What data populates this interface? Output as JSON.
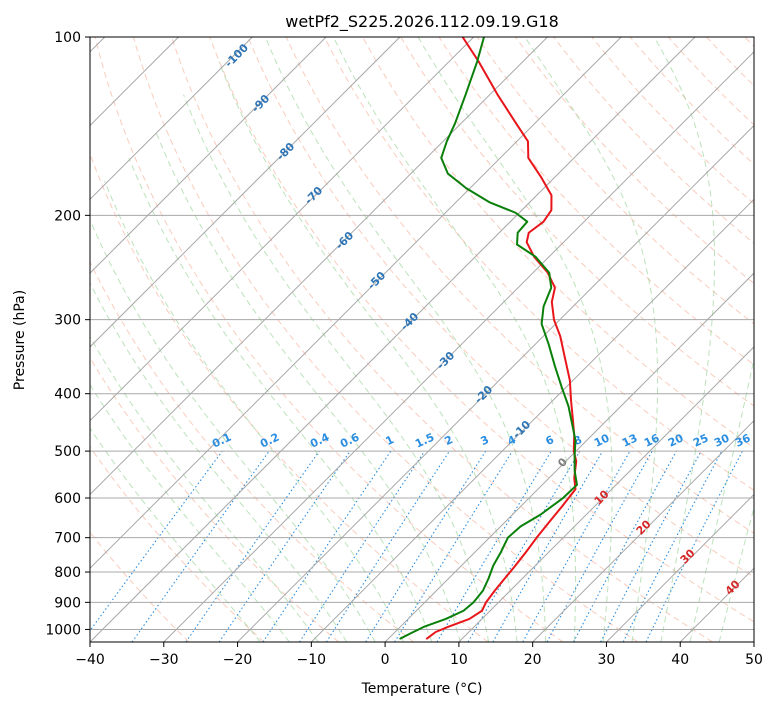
{
  "chart_data": {
    "type": "skew-t",
    "title": "wetPf2_S225.2026.112.09.19.G18",
    "xlabel": "Temperature (°C)",
    "ylabel": "Pressure (hPa)",
    "xlim": [
      -40,
      50
    ],
    "ylim": [
      1050,
      100
    ],
    "x_ticks": [
      -40,
      -30,
      -20,
      -10,
      0,
      10,
      20,
      30,
      40,
      50
    ],
    "y_ticks": [
      100,
      200,
      300,
      400,
      500,
      600,
      700,
      800,
      900,
      1000
    ],
    "grid": true,
    "colors": {
      "temperature": "#e8161a",
      "dewpoint": "#0a800a",
      "isotherm": "#a8a8a8",
      "isobar": "#a8a8a8",
      "dry_adiabat": "#f4a386",
      "moist_adiabat": "#8fcf8f",
      "mixing_ratio": "#2b8ee0",
      "isotherm_label": "#2e75b6",
      "isotherm_label_pos": "#d62728",
      "isotherm_label_zero": "#7f7f7f",
      "ccl_curve": "#d9b99b"
    },
    "series": [
      {
        "name": "Temperature",
        "points": [
          {
            "p": 1036,
            "t": 5.2
          },
          {
            "p": 1010,
            "t": 5.5
          },
          {
            "p": 990,
            "t": 6.5
          },
          {
            "p": 960,
            "t": 8.3
          },
          {
            "p": 930,
            "t": 8.9
          },
          {
            "p": 900,
            "t": 8.3
          },
          {
            "p": 860,
            "t": 7.9
          },
          {
            "p": 820,
            "t": 7.6
          },
          {
            "p": 780,
            "t": 7.3
          },
          {
            "p": 740,
            "t": 6.9
          },
          {
            "p": 700,
            "t": 6.4
          },
          {
            "p": 660,
            "t": 6.0
          },
          {
            "p": 620,
            "t": 5.6
          },
          {
            "p": 580,
            "t": 5.1
          },
          {
            "p": 555,
            "t": 3.4
          },
          {
            "p": 520,
            "t": 1.4
          },
          {
            "p": 500,
            "t": -0.3
          },
          {
            "p": 470,
            "t": -2.4
          },
          {
            "p": 440,
            "t": -4.9
          },
          {
            "p": 410,
            "t": -7.6
          },
          {
            "p": 380,
            "t": -10.4
          },
          {
            "p": 350,
            "t": -13.9
          },
          {
            "p": 320,
            "t": -17.7
          },
          {
            "p": 300,
            "t": -20.8
          },
          {
            "p": 280,
            "t": -23.5
          },
          {
            "p": 265,
            "t": -25.0
          },
          {
            "p": 250,
            "t": -28.0
          },
          {
            "p": 235,
            "t": -32.0
          },
          {
            "p": 222,
            "t": -35.0
          },
          {
            "p": 214,
            "t": -36.0
          },
          {
            "p": 205,
            "t": -35.5
          },
          {
            "p": 196,
            "t": -36.0
          },
          {
            "p": 185,
            "t": -38.0
          },
          {
            "p": 172,
            "t": -42.0
          },
          {
            "p": 160,
            "t": -46.2
          },
          {
            "p": 150,
            "t": -48.5
          },
          {
            "p": 140,
            "t": -52.5
          },
          {
            "p": 125,
            "t": -59.0
          },
          {
            "p": 110,
            "t": -66.0
          },
          {
            "p": 100,
            "t": -71.5
          }
        ]
      },
      {
        "name": "Dewpoint",
        "points": [
          {
            "p": 1036,
            "t": 1.6
          },
          {
            "p": 1015,
            "t": 2.3
          },
          {
            "p": 990,
            "t": 3.2
          },
          {
            "p": 960,
            "t": 5.1
          },
          {
            "p": 930,
            "t": 6.4
          },
          {
            "p": 900,
            "t": 6.6
          },
          {
            "p": 860,
            "t": 6.3
          },
          {
            "p": 820,
            "t": 5.4
          },
          {
            "p": 780,
            "t": 4.3
          },
          {
            "p": 740,
            "t": 3.5
          },
          {
            "p": 700,
            "t": 2.5
          },
          {
            "p": 670,
            "t": 2.7
          },
          {
            "p": 640,
            "t": 3.8
          },
          {
            "p": 600,
            "t": 4.6
          },
          {
            "p": 570,
            "t": 4.7
          },
          {
            "p": 540,
            "t": 2.5
          },
          {
            "p": 510,
            "t": 0.5
          },
          {
            "p": 480,
            "t": -1.5
          },
          {
            "p": 450,
            "t": -4.2
          },
          {
            "p": 420,
            "t": -7.1
          },
          {
            "p": 390,
            "t": -10.6
          },
          {
            "p": 360,
            "t": -14.3
          },
          {
            "p": 330,
            "t": -18.2
          },
          {
            "p": 305,
            "t": -21.9
          },
          {
            "p": 285,
            "t": -24.0
          },
          {
            "p": 265,
            "t": -25.5
          },
          {
            "p": 250,
            "t": -27.8
          },
          {
            "p": 235,
            "t": -31.8
          },
          {
            "p": 224,
            "t": -36.0
          },
          {
            "p": 214,
            "t": -37.5
          },
          {
            "p": 205,
            "t": -37.7
          },
          {
            "p": 198,
            "t": -40.5
          },
          {
            "p": 190,
            "t": -45.5
          },
          {
            "p": 180,
            "t": -50.5
          },
          {
            "p": 170,
            "t": -55.0
          },
          {
            "p": 160,
            "t": -58.0
          },
          {
            "p": 150,
            "t": -59.5
          },
          {
            "p": 140,
            "t": -60.8
          },
          {
            "p": 125,
            "t": -63.3
          },
          {
            "p": 110,
            "t": -66.2
          },
          {
            "p": 100,
            "t": -68.6
          }
        ]
      }
    ],
    "isotherm_labels": [
      {
        "t": -100,
        "text": "-100"
      },
      {
        "t": -90,
        "text": "-90"
      },
      {
        "t": -80,
        "text": "-80"
      },
      {
        "t": -70,
        "text": "-70"
      },
      {
        "t": -60,
        "text": "-60"
      },
      {
        "t": -50,
        "text": "-50"
      },
      {
        "t": -40,
        "text": "-40"
      },
      {
        "t": -30,
        "text": "-30"
      },
      {
        "t": -20,
        "text": "-20"
      },
      {
        "t": -10,
        "text": "-10"
      },
      {
        "t": 0,
        "text": "0"
      },
      {
        "t": 10,
        "text": "10"
      },
      {
        "t": 20,
        "text": "20"
      },
      {
        "t": 30,
        "text": "30"
      },
      {
        "t": 40,
        "text": "40"
      }
    ],
    "mixing_ratio_labels": [
      "0.1",
      "0.2",
      "0.4",
      "0.6",
      "1",
      "1.5",
      "2",
      "3",
      "4",
      "6",
      "8",
      "10",
      "13",
      "16",
      "20",
      "25",
      "30",
      "36"
    ]
  }
}
